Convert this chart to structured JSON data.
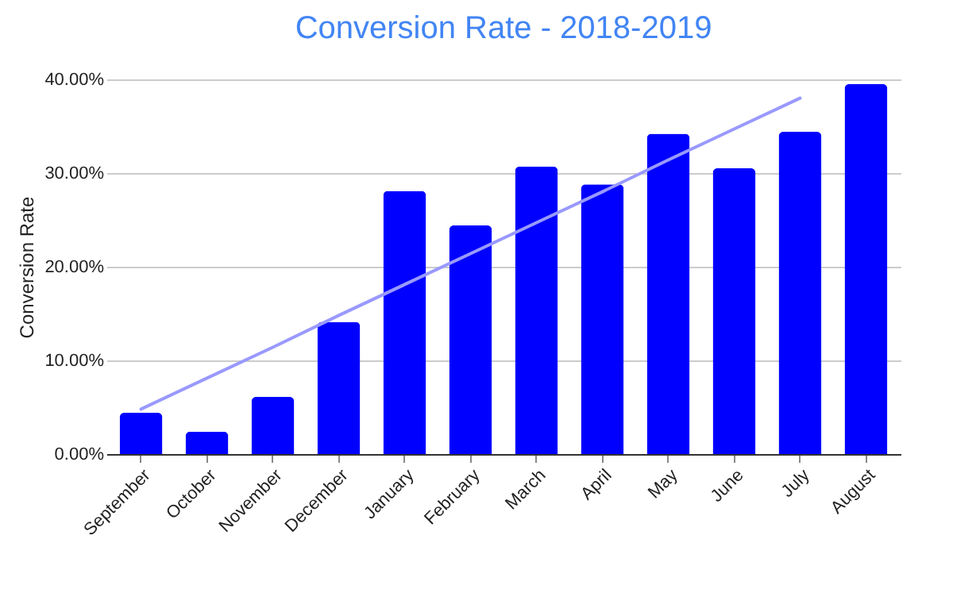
{
  "chart_data": {
    "type": "bar",
    "title": "Conversion Rate - 2018-2019",
    "ylabel": "Conversion Rate",
    "categories": [
      "September",
      "October",
      "November",
      "December",
      "January",
      "February",
      "March",
      "April",
      "May",
      "June",
      "July",
      "August"
    ],
    "series": [
      {
        "color": "#0000ff",
        "values": [
          4.4,
          2.4,
          6.1,
          14.1,
          28.1,
          24.4,
          30.7,
          28.8,
          34.2,
          30.5,
          34.4,
          39.5
        ]
      },
      {
        "type": "line",
        "color": "#9999ff",
        "values": [
          4.8,
          8.1,
          11.4,
          14.8,
          18.1,
          21.4,
          24.7,
          28.0,
          31.4,
          34.7,
          38.0,
          null
        ]
      }
    ],
    "ylim": [
      0,
      40
    ],
    "yticks": [
      {
        "value": 0,
        "label": "0.00%"
      },
      {
        "value": 10,
        "label": "10.00%"
      },
      {
        "value": 20,
        "label": "20.00%"
      },
      {
        "value": 30,
        "label": "30.00%"
      },
      {
        "value": 40,
        "label": "40.00%"
      }
    ],
    "grid": "y"
  }
}
